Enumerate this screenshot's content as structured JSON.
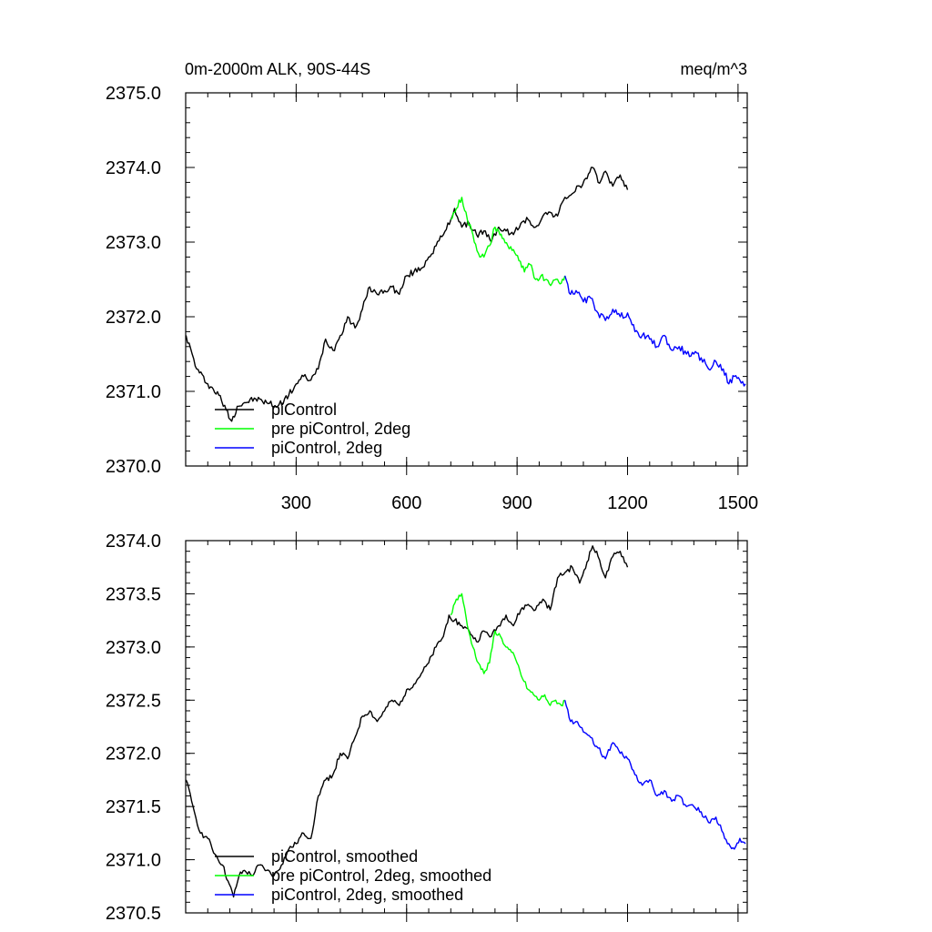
{
  "chart_data": [
    {
      "type": "line",
      "title_left": "0m-2000m ALK, 90S-44S",
      "title_right": "meq/m^3",
      "xlim": [
        0,
        1525
      ],
      "ylim": [
        2370.0,
        2375.0
      ],
      "xticks": [
        300,
        600,
        900,
        1200,
        1500
      ],
      "yticks": [
        2370.0,
        2371.0,
        2372.0,
        2373.0,
        2374.0,
        2375.0
      ],
      "ytick_labels": [
        "2370.0",
        "2371.0",
        "2372.0",
        "2373.0",
        "2374.0",
        "2375.0"
      ],
      "xtick_labels": [
        "300",
        "600",
        "900",
        "1200",
        "1500"
      ],
      "grid": false,
      "legend": "bottom-left",
      "series": [
        {
          "name": "piControl",
          "color": "#000000",
          "x": [
            1,
            30,
            60,
            90,
            110,
            125,
            140,
            160,
            190,
            220,
            250,
            280,
            300,
            320,
            340,
            360,
            380,
            400,
            420,
            440,
            460,
            480,
            500,
            520,
            540,
            560,
            580,
            600,
            620,
            640,
            660,
            680,
            700,
            720,
            730,
            750,
            770,
            790,
            810,
            830,
            850,
            870,
            890,
            910,
            930,
            950,
            970,
            990,
            1010,
            1030,
            1050,
            1070,
            1090,
            1105,
            1120,
            1140,
            1160,
            1180,
            1200
          ],
          "values": [
            2371.75,
            2371.3,
            2371.1,
            2370.95,
            2370.75,
            2370.6,
            2370.8,
            2370.85,
            2370.9,
            2370.85,
            2370.8,
            2370.95,
            2371.1,
            2371.2,
            2371.15,
            2371.3,
            2371.7,
            2371.55,
            2371.75,
            2372.0,
            2371.85,
            2372.1,
            2372.4,
            2372.3,
            2372.35,
            2372.4,
            2372.3,
            2372.55,
            2372.6,
            2372.65,
            2372.8,
            2372.95,
            2373.1,
            2373.3,
            2373.45,
            2373.2,
            2373.25,
            2373.1,
            2373.15,
            2373.0,
            2373.2,
            2373.15,
            2373.1,
            2373.25,
            2373.3,
            2373.2,
            2373.35,
            2373.4,
            2373.35,
            2373.6,
            2373.65,
            2373.75,
            2373.85,
            2374.0,
            2373.8,
            2373.95,
            2373.75,
            2373.9,
            2373.7
          ]
        },
        {
          "name": "pre piControl, 2deg",
          "color": "#00ff00",
          "x": [
            720,
            735,
            750,
            765,
            780,
            795,
            810,
            825,
            840,
            850,
            860,
            875,
            890,
            905,
            920,
            935,
            950,
            965,
            980,
            995,
            1010,
            1020,
            1030
          ],
          "values": [
            2373.3,
            2373.45,
            2373.6,
            2373.3,
            2373.1,
            2372.85,
            2372.8,
            2372.95,
            2373.2,
            2373.15,
            2373.05,
            2372.95,
            2372.9,
            2372.75,
            2372.6,
            2372.7,
            2372.5,
            2372.55,
            2372.5,
            2372.45,
            2372.5,
            2372.45,
            2372.55
          ]
        },
        {
          "name": "piControl, 2deg",
          "color": "#0000ff",
          "x": [
            1030,
            1045,
            1060,
            1080,
            1100,
            1120,
            1140,
            1160,
            1180,
            1200,
            1220,
            1240,
            1260,
            1280,
            1300,
            1320,
            1340,
            1360,
            1380,
            1400,
            1420,
            1440,
            1460,
            1475,
            1490,
            1505,
            1520
          ],
          "values": [
            2372.55,
            2372.3,
            2372.35,
            2372.2,
            2372.25,
            2372.05,
            2371.95,
            2372.1,
            2372.0,
            2372.05,
            2371.8,
            2371.75,
            2371.7,
            2371.6,
            2371.75,
            2371.55,
            2371.6,
            2371.5,
            2371.5,
            2371.45,
            2371.3,
            2371.4,
            2371.3,
            2371.1,
            2371.2,
            2371.15,
            2371.1
          ]
        }
      ]
    },
    {
      "type": "line",
      "xlim": [
        0,
        1525
      ],
      "ylim": [
        2370.5,
        2374.0
      ],
      "xticks": [
        300,
        600,
        900,
        1200,
        1500
      ],
      "yticks": [
        2370.5,
        2371.0,
        2371.5,
        2372.0,
        2372.5,
        2373.0,
        2373.5,
        2374.0
      ],
      "ytick_labels": [
        "2370.5",
        "2371.0",
        "2371.5",
        "2372.0",
        "2372.5",
        "2373.0",
        "2373.5",
        "2374.0"
      ],
      "grid": false,
      "legend": "bottom-left",
      "series": [
        {
          "name": "piControl, smoothed",
          "color": "#000000",
          "x": [
            1,
            20,
            40,
            60,
            80,
            100,
            115,
            130,
            145,
            160,
            180,
            200,
            220,
            240,
            260,
            280,
            300,
            320,
            340,
            360,
            380,
            400,
            420,
            440,
            460,
            480,
            500,
            520,
            540,
            560,
            580,
            600,
            620,
            640,
            660,
            680,
            700,
            715,
            730,
            750,
            770,
            790,
            810,
            830,
            850,
            870,
            890,
            910,
            930,
            950,
            970,
            990,
            1010,
            1030,
            1050,
            1070,
            1090,
            1105,
            1120,
            1140,
            1160,
            1180,
            1200
          ],
          "values": [
            2371.75,
            2371.5,
            2371.25,
            2371.2,
            2371.05,
            2370.95,
            2370.8,
            2370.65,
            2370.85,
            2370.9,
            2370.85,
            2370.95,
            2370.9,
            2370.85,
            2370.95,
            2371.1,
            2371.15,
            2371.25,
            2371.2,
            2371.6,
            2371.75,
            2371.8,
            2372.0,
            2371.95,
            2372.15,
            2372.35,
            2372.4,
            2372.3,
            2372.4,
            2372.5,
            2372.45,
            2372.6,
            2372.65,
            2372.75,
            2372.85,
            2373.0,
            2373.1,
            2373.3,
            2373.25,
            2373.2,
            2373.15,
            2373.05,
            2373.15,
            2373.1,
            2373.2,
            2373.3,
            2373.2,
            2373.35,
            2373.4,
            2373.35,
            2373.45,
            2373.35,
            2373.65,
            2373.7,
            2373.75,
            2373.6,
            2373.8,
            2373.95,
            2373.85,
            2373.65,
            2373.85,
            2373.9,
            2373.75
          ]
        },
        {
          "name": "pre piControl, 2deg, smoothed",
          "color": "#00ff00",
          "x": [
            720,
            735,
            750,
            765,
            780,
            795,
            810,
            825,
            840,
            855,
            870,
            885,
            900,
            915,
            930,
            945,
            960,
            975,
            990,
            1005,
            1020,
            1030
          ],
          "values": [
            2373.3,
            2373.45,
            2373.5,
            2373.2,
            2373.0,
            2372.85,
            2372.75,
            2372.85,
            2373.15,
            2373.1,
            2373.0,
            2372.95,
            2372.85,
            2372.7,
            2372.6,
            2372.55,
            2372.5,
            2372.55,
            2372.45,
            2372.5,
            2372.45,
            2372.5
          ]
        },
        {
          "name": "piControl, 2deg, smoothed",
          "color": "#0000ff",
          "x": [
            1030,
            1045,
            1060,
            1080,
            1100,
            1120,
            1140,
            1160,
            1180,
            1200,
            1220,
            1240,
            1260,
            1280,
            1300,
            1320,
            1340,
            1360,
            1380,
            1400,
            1420,
            1440,
            1460,
            1475,
            1490,
            1505,
            1520
          ],
          "values": [
            2372.5,
            2372.3,
            2372.3,
            2372.2,
            2372.15,
            2372.05,
            2371.95,
            2372.1,
            2372.0,
            2371.95,
            2371.8,
            2371.7,
            2371.75,
            2371.6,
            2371.65,
            2371.55,
            2371.6,
            2371.5,
            2371.5,
            2371.45,
            2371.35,
            2371.4,
            2371.25,
            2371.15,
            2371.1,
            2371.2,
            2371.15
          ]
        }
      ]
    }
  ]
}
